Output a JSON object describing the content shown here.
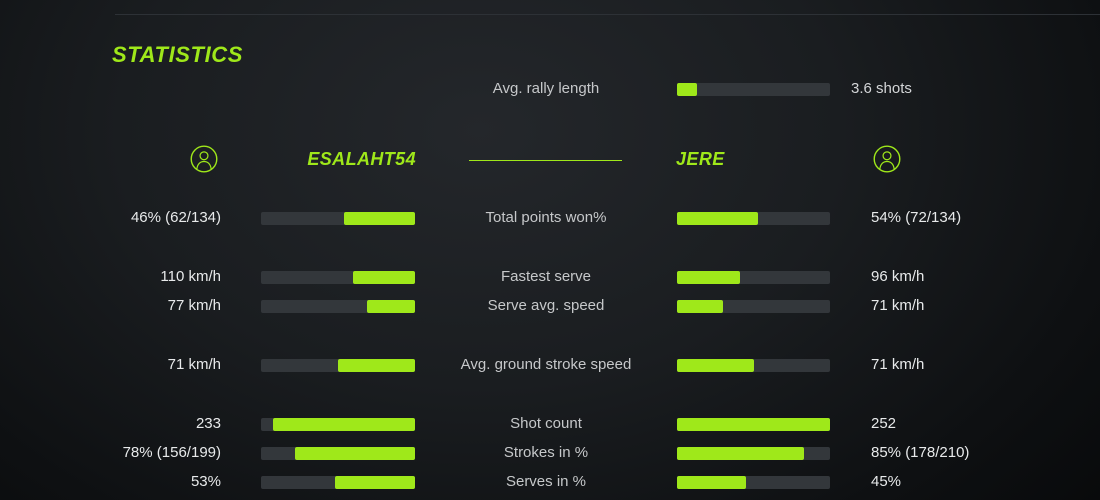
{
  "theme": {
    "accent": "#9fe81a",
    "bar_track": "#33373b",
    "background_center": "#24272b",
    "background_edge": "#060708",
    "label_color": "#c6c8ca",
    "value_color": "#e8eaeb"
  },
  "header": {
    "title": "STATISTICS"
  },
  "rally": {
    "label": "Avg. rally length",
    "value": "3.6 shots",
    "fill_pct": 13
  },
  "players": {
    "left": {
      "name": "ESALAHT54",
      "avatar_icon": "user-icon"
    },
    "right": {
      "name": "JERE",
      "avatar_icon": "user-icon"
    }
  },
  "stats": [
    {
      "label": "Total points won%",
      "left_value": "46% (62/134)",
      "right_value": "54% (72/134)",
      "left_fill": 46,
      "right_fill": 53
    },
    {
      "label": "Fastest serve",
      "left_value": "110 km/h",
      "right_value": "96 km/h",
      "left_fill": 40,
      "right_fill": 41
    },
    {
      "label": "Serve avg. speed",
      "left_value": "77 km/h",
      "right_value": "71 km/h",
      "left_fill": 31,
      "right_fill": 30
    },
    {
      "label": "Avg. ground stroke speed",
      "left_value": "71 km/h",
      "right_value": "71 km/h",
      "left_fill": 50,
      "right_fill": 50
    },
    {
      "label": "Shot count",
      "left_value": "233",
      "right_value": "252",
      "left_fill": 92,
      "right_fill": 100
    },
    {
      "label": "Strokes in %",
      "left_value": "78% (156/199)",
      "right_value": "85% (178/210)",
      "left_fill": 78,
      "right_fill": 83
    },
    {
      "label": "Serves in %",
      "left_value": "53%",
      "right_value": "45%",
      "left_fill": 52,
      "right_fill": 45
    }
  ]
}
